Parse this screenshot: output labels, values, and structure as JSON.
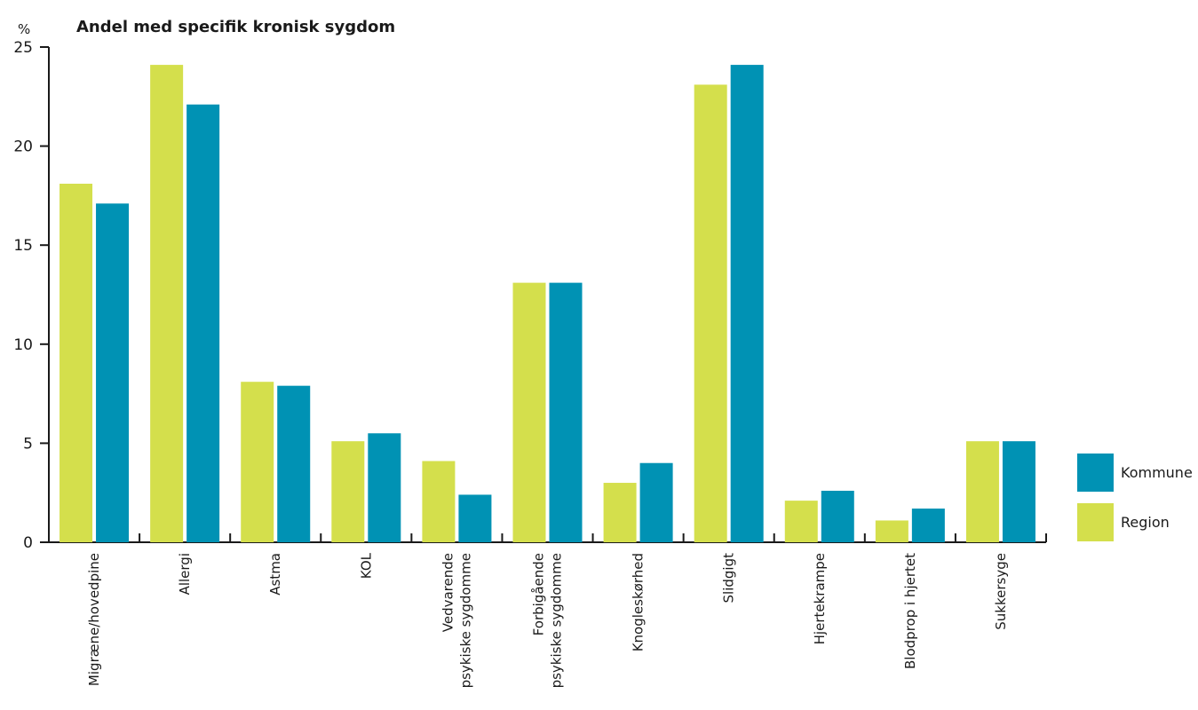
{
  "chart_data": {
    "type": "bar",
    "title": "Andel med specifik kronisk sygdom",
    "ylabel": "%",
    "xlabel": "",
    "ylim": [
      0,
      25
    ],
    "yticks": [
      0,
      5,
      10,
      15,
      20,
      25
    ],
    "grid": false,
    "legend_position": "right",
    "categories": [
      [
        "Migræne/hovedpine"
      ],
      [
        "Allergi"
      ],
      [
        "Astma"
      ],
      [
        "KOL"
      ],
      [
        "Vedvarende",
        "psykiske sygdomme"
      ],
      [
        "Forbigående",
        "psykiske sygdomme"
      ],
      [
        "Knogleskørhed"
      ],
      [
        "Slidgigt"
      ],
      [
        "Hjertekrampe"
      ],
      [
        "Blodprop i hjertet"
      ],
      [
        "Sukkersyge"
      ]
    ],
    "series": [
      {
        "name": "Region",
        "color": "#d4df4c",
        "values": [
          18.1,
          24.1,
          8.1,
          5.1,
          4.1,
          13.1,
          3.0,
          23.1,
          2.1,
          1.1,
          5.1
        ]
      },
      {
        "name": "Kommune",
        "color": "#0092b4",
        "values": [
          17.1,
          22.1,
          7.9,
          5.5,
          2.4,
          13.1,
          4.0,
          24.1,
          2.6,
          1.7,
          5.1
        ]
      }
    ],
    "legend_order": [
      "Kommune",
      "Region"
    ]
  }
}
